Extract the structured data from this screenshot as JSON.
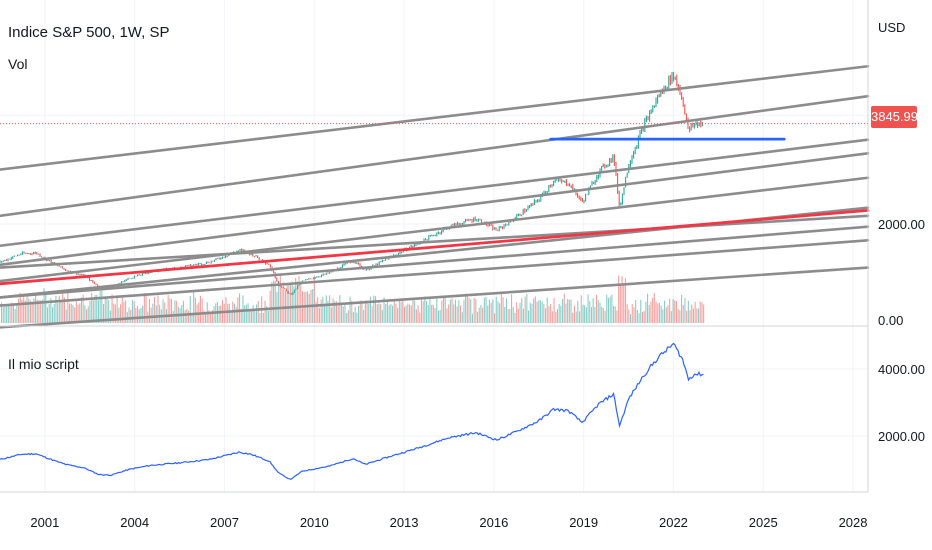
{
  "header": {
    "title": "Indice S&P 500, 1W, SP",
    "vol_label": "Vol",
    "currency": "USD",
    "last_price": "3845.99",
    "script_label": "Il mio script"
  },
  "colors": {
    "up": "#26a69a",
    "down": "#ef5350",
    "trend_gray": "#8c8c8c",
    "trend_red": "#f23645",
    "support_blue": "#2962ff",
    "script_line": "#2962ff",
    "price_dotted": "#ef5350"
  },
  "chart_data": [
    {
      "type": "line",
      "pane": "price",
      "series": [
        {
          "values": [
            [
              1999.5,
              1300
            ],
            [
              2000.2,
              1450
            ],
            [
              2000.7,
              1470
            ],
            [
              2001.2,
              1300
            ],
            [
              2001.7,
              1150
            ],
            [
              2002.3,
              1050
            ],
            [
              2002.8,
              850
            ],
            [
              2003.2,
              830
            ],
            [
              2003.8,
              1000
            ],
            [
              2004.5,
              1120
            ],
            [
              2005.5,
              1200
            ],
            [
              2006.5,
              1300
            ],
            [
              2007.5,
              1520
            ],
            [
              2007.9,
              1450
            ],
            [
              2008.5,
              1250
            ],
            [
              2008.8,
              900
            ],
            [
              2009.2,
              700
            ],
            [
              2009.6,
              950
            ],
            [
              2010.5,
              1100
            ],
            [
              2011.3,
              1330
            ],
            [
              2011.7,
              1150
            ],
            [
              2012.5,
              1380
            ],
            [
              2013.5,
              1650
            ],
            [
              2014.5,
              1950
            ],
            [
              2015.4,
              2100
            ],
            [
              2016.1,
              1880
            ],
            [
              2016.8,
              2150
            ],
            [
              2017.5,
              2450
            ],
            [
              2018.0,
              2800
            ],
            [
              2018.5,
              2750
            ],
            [
              2018.95,
              2400
            ],
            [
              2019.5,
              2950
            ],
            [
              2020.0,
              3250
            ],
            [
              2020.2,
              2300
            ],
            [
              2020.5,
              3100
            ],
            [
              2021.0,
              3800
            ],
            [
              2021.5,
              4350
            ],
            [
              2022.0,
              4750
            ],
            [
              2022.3,
              4300
            ],
            [
              2022.5,
              3700
            ],
            [
              2022.7,
              3846
            ]
          ]
        }
      ],
      "ylabel": "USD",
      "ytick_labels": [
        "2000.00",
        "0.00"
      ]
    },
    {
      "type": "bar",
      "pane": "volume",
      "series": [
        {
          "name": "Vol"
        }
      ]
    },
    {
      "type": "line",
      "pane": "indicator",
      "series": [
        {
          "name": "Il mio script",
          "values": [
            [
              1999.5,
              1300
            ],
            [
              2000.2,
              1450
            ],
            [
              2000.7,
              1470
            ],
            [
              2001.2,
              1300
            ],
            [
              2001.7,
              1150
            ],
            [
              2002.3,
              1050
            ],
            [
              2002.8,
              850
            ],
            [
              2003.2,
              830
            ],
            [
              2003.8,
              1000
            ],
            [
              2004.5,
              1120
            ],
            [
              2005.5,
              1200
            ],
            [
              2006.5,
              1300
            ],
            [
              2007.5,
              1520
            ],
            [
              2007.9,
              1450
            ],
            [
              2008.5,
              1250
            ],
            [
              2008.8,
              900
            ],
            [
              2009.2,
              700
            ],
            [
              2009.6,
              950
            ],
            [
              2010.5,
              1100
            ],
            [
              2011.3,
              1330
            ],
            [
              2011.7,
              1150
            ],
            [
              2012.5,
              1380
            ],
            [
              2013.5,
              1650
            ],
            [
              2014.5,
              1950
            ],
            [
              2015.4,
              2100
            ],
            [
              2016.1,
              1880
            ],
            [
              2016.8,
              2150
            ],
            [
              2017.5,
              2450
            ],
            [
              2018.0,
              2800
            ],
            [
              2018.5,
              2750
            ],
            [
              2018.95,
              2400
            ],
            [
              2019.5,
              2950
            ],
            [
              2020.0,
              3250
            ],
            [
              2020.2,
              2300
            ],
            [
              2020.5,
              3100
            ],
            [
              2021.0,
              3800
            ],
            [
              2021.5,
              4350
            ],
            [
              2022.0,
              4750
            ],
            [
              2022.3,
              4300
            ],
            [
              2022.5,
              3700
            ],
            [
              2022.7,
              3846
            ]
          ]
        }
      ],
      "ytick_labels": [
        "4000.00",
        "2000.00"
      ]
    }
  ],
  "x_axis": {
    "tick_labels": [
      "2001",
      "2004",
      "2007",
      "2010",
      "2013",
      "2016",
      "2019",
      "2022",
      "2025",
      "2028"
    ]
  },
  "drawings": {
    "trendlines_gray": [
      [
        [
          1999.5,
          3000
        ],
        [
          2028.5,
          4900
        ]
      ],
      [
        [
          1999.5,
          2150
        ],
        [
          2028.5,
          4350
        ]
      ],
      [
        [
          1999.5,
          1600
        ],
        [
          2028.5,
          3550
        ]
      ],
      [
        [
          1999.5,
          1250
        ],
        [
          2028.5,
          3300
        ]
      ],
      [
        [
          1999.5,
          950
        ],
        [
          2028.5,
          2850
        ]
      ],
      [
        [
          1999.5,
          650
        ],
        [
          2028.5,
          2300
        ]
      ],
      [
        [
          1999.5,
          1200
        ],
        [
          2028.5,
          2150
        ]
      ],
      [
        [
          1999.5,
          650
        ],
        [
          2028.5,
          1950
        ]
      ],
      [
        [
          1999.5,
          500
        ],
        [
          2028.5,
          1700
        ]
      ],
      [
        [
          1999.5,
          100
        ],
        [
          2028.5,
          1200
        ]
      ]
    ],
    "trendline_red": [
      [
        1999.5,
        900
      ],
      [
        2028.5,
        2250
      ]
    ],
    "support_blue": [
      [
        2017.9,
        3560
      ],
      [
        2025.7,
        3560
      ]
    ]
  }
}
